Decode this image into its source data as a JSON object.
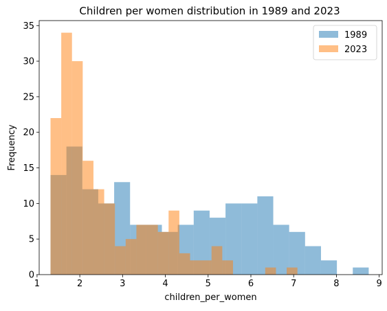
{
  "chart_data": {
    "type": "histogram",
    "title": "Children per women distribution in 1989 and 2023",
    "xlabel": "children_per_women",
    "ylabel": "Frequency",
    "xlim": [
      1.05,
      9.07
    ],
    "ylim": [
      0,
      35.7
    ],
    "xticks": [
      1,
      2,
      3,
      4,
      5,
      6,
      7,
      8,
      9
    ],
    "yticks": [
      0,
      5,
      10,
      15,
      20,
      25,
      30,
      35
    ],
    "grid": false,
    "legend": "top-right",
    "series": [
      {
        "name": "1989",
        "color": "#1f77b4",
        "opacity": 0.5,
        "bin_edges": [
          1.315,
          1.687,
          2.059,
          2.431,
          2.803,
          3.175,
          3.547,
          3.919,
          4.291,
          4.663,
          5.035,
          5.407,
          5.779,
          6.151,
          6.523,
          6.895,
          7.267,
          7.639,
          8.011,
          8.383,
          8.755
        ],
        "counts": [
          14,
          18,
          12,
          10,
          13,
          7,
          7,
          6,
          7,
          9,
          8,
          10,
          10,
          11,
          7,
          6,
          4,
          2,
          0,
          1
        ]
      },
      {
        "name": "2023",
        "color": "#ff7f0e",
        "opacity": 0.5,
        "bin_edges": [
          1.315,
          1.566,
          1.817,
          2.068,
          2.319,
          2.57,
          2.821,
          3.072,
          3.323,
          3.574,
          3.825,
          4.076,
          4.327,
          4.578,
          4.829,
          5.08,
          5.331,
          5.582,
          5.833,
          6.084,
          6.335,
          6.586,
          6.837,
          7.088
        ],
        "counts": [
          22,
          34,
          30,
          16,
          12,
          10,
          4,
          5,
          7,
          7,
          6,
          9,
          3,
          2,
          2,
          4,
          2,
          0,
          0,
          0,
          1,
          0,
          1
        ]
      }
    ]
  }
}
